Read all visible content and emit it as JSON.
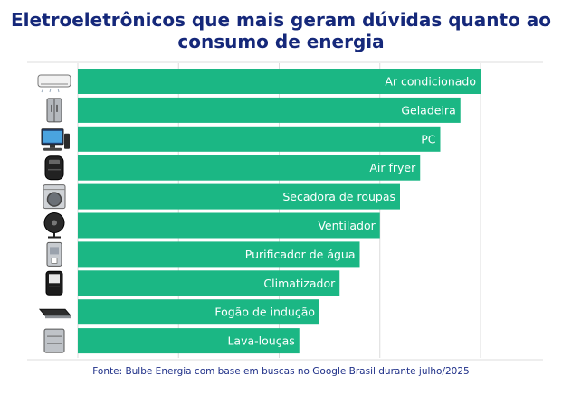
{
  "title_lines": [
    "Eletroeletrônicos que mais geram dúvidas quanto ao",
    "consumo de energia"
  ],
  "source": "Fonte: Bulbe Energia com base em buscas no Google Brasil durante julho/2025",
  "colors": {
    "bar": "#1bb784",
    "title": "#15287a",
    "source": "#1e2f88",
    "grid": "#dcdcdc"
  },
  "chart_data": {
    "type": "bar",
    "orientation": "horizontal",
    "categories": [
      "Ar condicionado",
      "Geladeira",
      "PC",
      "Air fryer",
      "Secadora de roupas",
      "Ventilador",
      "Purificador de água",
      "Climatizador",
      "Fogão de indução",
      "Lava-louças"
    ],
    "values": [
      100,
      95,
      90,
      85,
      80,
      75,
      70,
      65,
      60,
      55
    ],
    "icons": [
      "air-conditioner-icon",
      "refrigerator-icon",
      "pc-icon",
      "air-fryer-icon",
      "dryer-icon",
      "fan-icon",
      "water-purifier-icon",
      "air-cooler-icon",
      "induction-cooktop-icon",
      "dishwasher-icon"
    ],
    "xlim": [
      0,
      100
    ],
    "grid": true,
    "legend": "none"
  }
}
